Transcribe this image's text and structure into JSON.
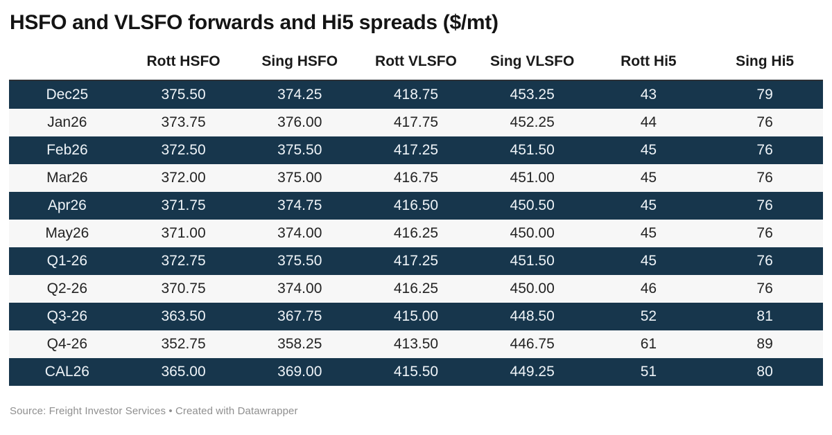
{
  "chart_data": {
    "type": "table",
    "title": "HSFO and VLSFO forwards and Hi5 spreads ($/mt)",
    "columns": [
      "",
      "Rott HSFO",
      "Sing HSFO",
      "Rott VLSFO",
      "Sing VLSFO",
      "Rott Hi5",
      "Sing Hi5"
    ],
    "rows": [
      [
        "Dec25",
        "375.50",
        "374.25",
        "418.75",
        "453.25",
        "43",
        "79"
      ],
      [
        "Jan26",
        "373.75",
        "376.00",
        "417.75",
        "452.25",
        "44",
        "76"
      ],
      [
        "Feb26",
        "372.50",
        "375.50",
        "417.25",
        "451.50",
        "45",
        "76"
      ],
      [
        "Mar26",
        "372.00",
        "375.00",
        "416.75",
        "451.00",
        "45",
        "76"
      ],
      [
        "Apr26",
        "371.75",
        "374.75",
        "416.50",
        "450.50",
        "45",
        "76"
      ],
      [
        "May26",
        "371.00",
        "374.00",
        "416.25",
        "450.00",
        "45",
        "76"
      ],
      [
        "Q1-26",
        "372.75",
        "375.50",
        "417.25",
        "451.50",
        "45",
        "76"
      ],
      [
        "Q2-26",
        "370.75",
        "374.00",
        "416.25",
        "450.00",
        "46",
        "76"
      ],
      [
        "Q3-26",
        "363.50",
        "367.75",
        "415.00",
        "448.50",
        "52",
        "81"
      ],
      [
        "Q4-26",
        "352.75",
        "358.25",
        "413.50",
        "446.75",
        "61",
        "89"
      ],
      [
        "CAL26",
        "365.00",
        "369.00",
        "415.50",
        "449.25",
        "51",
        "80"
      ]
    ],
    "layout": {
      "row_striping": "odd rows dark navy with white text, even rows light gray with dark text",
      "cell_alignment": "center",
      "grid": "off"
    }
  },
  "footer": {
    "text": "Source: Freight Investor Services • Created with Datawrapper"
  },
  "colors": {
    "title_text": "#141414",
    "header_text": "#1a1a1a",
    "dark_row_bg": "#17364c",
    "dark_row_text": "#eff4f8",
    "light_row_bg": "#f7f7f7",
    "light_row_text": "#232323",
    "footer_text": "#8f8f8f"
  }
}
